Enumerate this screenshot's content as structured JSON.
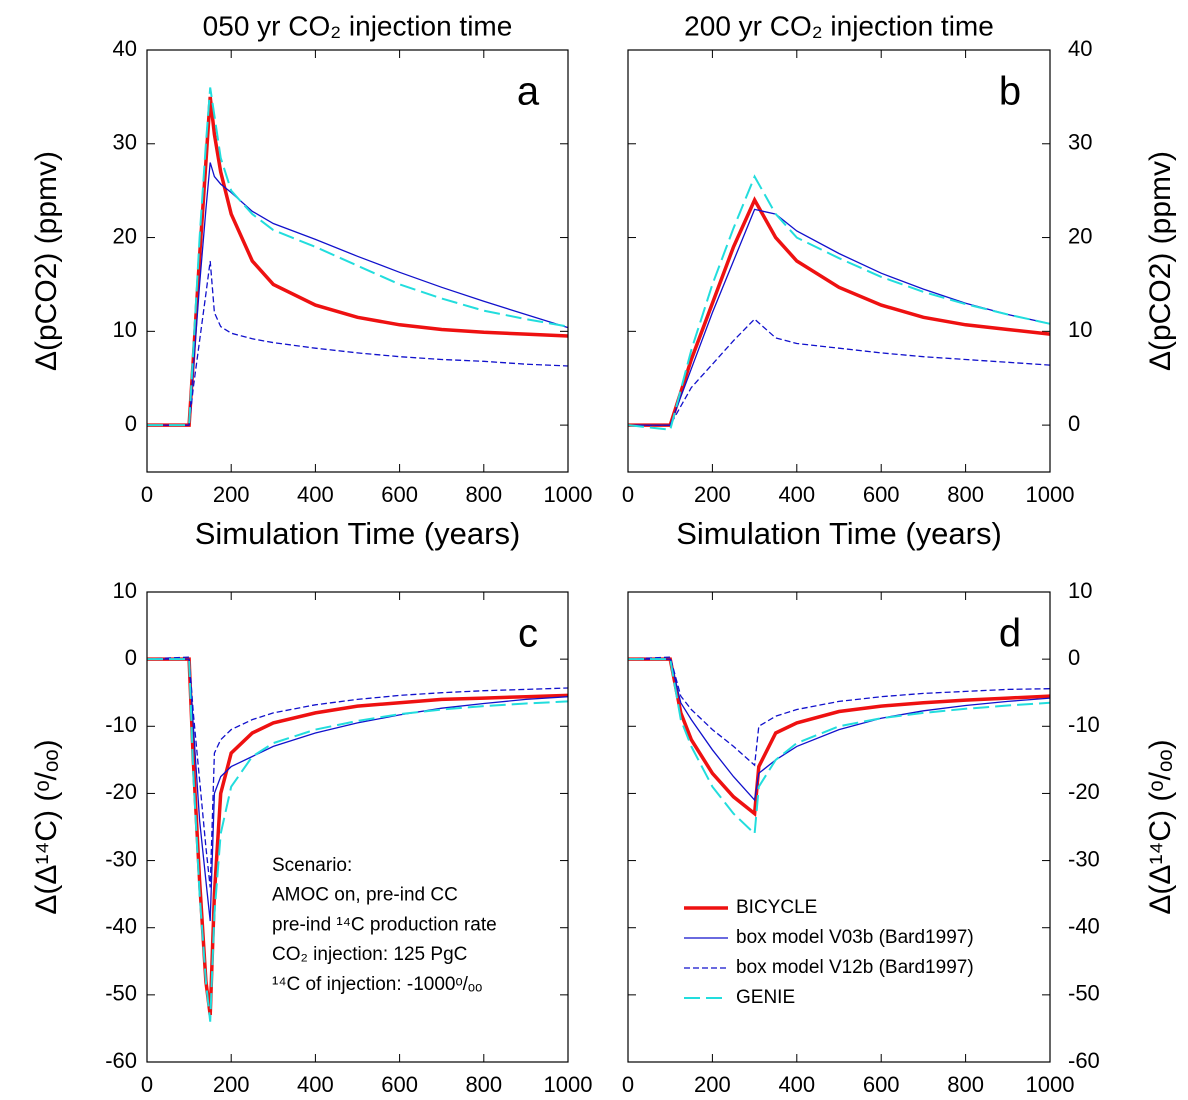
{
  "chart_data": [
    {
      "type": "line",
      "title": "050 yr CO₂ injection time",
      "panel_label": "a",
      "xlabel": "Simulation Time (years)",
      "ylabel": "Δ(pCO2) (ppmv)",
      "y_axis_side": "left",
      "xlim": [
        0,
        1000
      ],
      "xticks": [
        0,
        200,
        400,
        600,
        800,
        1000
      ],
      "ylim": [
        -5,
        40
      ],
      "yticks": [
        0,
        10,
        20,
        30,
        40
      ],
      "x": [
        0,
        100,
        110,
        125,
        140,
        150,
        160,
        175,
        200,
        250,
        300,
        400,
        500,
        600,
        700,
        800,
        900,
        1000
      ],
      "series": [
        {
          "color": "#ee1111",
          "style": "solid-thick",
          "values": [
            0,
            0,
            7,
            18,
            28,
            35,
            31,
            27,
            22.5,
            17.5,
            15,
            12.8,
            11.5,
            10.7,
            10.2,
            9.9,
            9.7,
            9.5
          ]
        },
        {
          "color": "#1111cc",
          "style": "solid",
          "values": [
            0,
            0,
            6,
            15,
            23,
            28,
            26.5,
            25.7,
            24.8,
            22.8,
            21.5,
            19.8,
            18,
            16.3,
            14.7,
            13.2,
            11.8,
            10.4
          ]
        },
        {
          "color": "#1111cc",
          "style": "dashed",
          "values": [
            0,
            0,
            4,
            9,
            14,
            17.5,
            12,
            10.5,
            9.8,
            9.2,
            8.8,
            8.2,
            7.7,
            7.3,
            7,
            6.8,
            6.5,
            6.3
          ]
        },
        {
          "color": "#22dddd",
          "style": "long-dashed",
          "values": [
            0,
            0,
            8,
            20,
            30,
            36,
            33,
            28.5,
            25,
            22.5,
            20.8,
            19,
            17,
            15,
            13.5,
            12.2,
            11.3,
            10.5
          ]
        }
      ]
    },
    {
      "type": "line",
      "title": "200 yr CO₂ injection time",
      "panel_label": "b",
      "xlabel": "Simulation Time (years)",
      "ylabel": "Δ(pCO2) (ppmv)",
      "y_axis_side": "right",
      "xlim": [
        0,
        1000
      ],
      "xticks": [
        0,
        200,
        400,
        600,
        800,
        1000
      ],
      "ylim": [
        -5,
        40
      ],
      "yticks": [
        0,
        10,
        20,
        30,
        40
      ],
      "x": [
        0,
        100,
        150,
        200,
        250,
        300,
        350,
        400,
        500,
        600,
        700,
        800,
        900,
        1000
      ],
      "series": [
        {
          "color": "#ee1111",
          "style": "solid-thick",
          "values": [
            0,
            0,
            7,
            13,
            19,
            24,
            20,
            17.5,
            14.7,
            12.8,
            11.5,
            10.7,
            10.2,
            9.7
          ]
        },
        {
          "color": "#1111cc",
          "style": "solid",
          "values": [
            0,
            0,
            6,
            12,
            17.5,
            23,
            22.5,
            20.7,
            18.3,
            16.2,
            14.5,
            13,
            11.8,
            10.8
          ]
        },
        {
          "color": "#1111cc",
          "style": "dashed",
          "values": [
            0,
            0,
            4,
            6.5,
            9,
            11.3,
            9.3,
            8.7,
            8.2,
            7.7,
            7.3,
            7,
            6.7,
            6.4
          ]
        },
        {
          "color": "#22dddd",
          "style": "long-dashed",
          "values": [
            0,
            -0.5,
            8,
            15,
            21,
            26.5,
            22.5,
            20,
            17.8,
            15.8,
            14.2,
            12.9,
            11.8,
            10.8
          ]
        }
      ]
    },
    {
      "type": "line",
      "panel_label": "c",
      "xlabel": "Simulation Time (years)",
      "ylabel": "Δ(Δ¹⁴C) (ᵒ/ₒₒ)",
      "y_axis_side": "left",
      "xlim": [
        0,
        1000
      ],
      "xticks": [
        0,
        200,
        400,
        600,
        800,
        1000
      ],
      "ylim": [
        -60,
        10
      ],
      "yticks": [
        -60,
        -50,
        -40,
        -30,
        -20,
        -10,
        0,
        10
      ],
      "annotation": [
        "Scenario:",
        "AMOC on, pre-ind CC",
        "pre-ind ¹⁴C production rate",
        "CO₂ injection: 125 PgC",
        "¹⁴C of injection: -1000ᵒ/ₒₒ"
      ],
      "x": [
        0,
        100,
        110,
        125,
        140,
        150,
        160,
        175,
        200,
        250,
        300,
        400,
        500,
        600,
        700,
        800,
        900,
        1000
      ],
      "series": [
        {
          "color": "#ee1111",
          "style": "solid-thick",
          "values": [
            0,
            0,
            -15,
            -33,
            -48,
            -53,
            -35,
            -20,
            -14,
            -11,
            -9.5,
            -8,
            -7,
            -6.5,
            -6,
            -5.8,
            -5.6,
            -5.4
          ]
        },
        {
          "color": "#1111cc",
          "style": "solid",
          "values": [
            0,
            0,
            -10,
            -24,
            -33,
            -39,
            -20,
            -17.5,
            -16,
            -14.5,
            -13,
            -11,
            -9.5,
            -8.3,
            -7.3,
            -6.6,
            -6,
            -5.6
          ]
        },
        {
          "color": "#1111cc",
          "style": "dashed",
          "values": [
            0,
            0.3,
            -8,
            -18,
            -28,
            -34,
            -14,
            -12,
            -10.5,
            -9,
            -8,
            -6.8,
            -6,
            -5.4,
            -5,
            -4.7,
            -4.5,
            -4.3
          ]
        },
        {
          "color": "#22dddd",
          "style": "long-dashed",
          "values": [
            0,
            0,
            -17,
            -35,
            -48,
            -54,
            -38,
            -26,
            -19,
            -14.5,
            -12.5,
            -10.5,
            -9.2,
            -8.2,
            -7.5,
            -7,
            -6.6,
            -6.3
          ]
        }
      ]
    },
    {
      "type": "line",
      "panel_label": "d",
      "xlabel": "Simulation Time (years)",
      "ylabel": "Δ(Δ¹⁴C) (ᵒ/ₒₒ)",
      "y_axis_side": "right",
      "legend": "lower right",
      "xlim": [
        0,
        1000
      ],
      "xticks": [
        0,
        200,
        400,
        600,
        800,
        1000
      ],
      "ylim": [
        -60,
        10
      ],
      "yticks": [
        -60,
        -50,
        -40,
        -30,
        -20,
        -10,
        0,
        10
      ],
      "x": [
        0,
        100,
        125,
        150,
        200,
        250,
        300,
        310,
        350,
        400,
        500,
        600,
        700,
        800,
        900,
        1000
      ],
      "series": [
        {
          "name": "BICYCLE",
          "color": "#ee1111",
          "style": "solid-thick",
          "values": [
            0,
            0,
            -8,
            -12,
            -17,
            -20.5,
            -23,
            -16,
            -11,
            -9.5,
            -7.8,
            -7,
            -6.5,
            -6.1,
            -5.8,
            -5.5
          ]
        },
        {
          "name": "box model V03b (Bard1997)",
          "color": "#1111cc",
          "style": "solid",
          "values": [
            0,
            0,
            -6.5,
            -9,
            -13.5,
            -17.5,
            -21,
            -17,
            -15,
            -13,
            -10.5,
            -8.8,
            -7.7,
            -6.9,
            -6.3,
            -5.8
          ]
        },
        {
          "name": "box model V12b (Bard1997)",
          "color": "#1111cc",
          "style": "dashed",
          "values": [
            0,
            0.3,
            -5.5,
            -7.5,
            -10.5,
            -13,
            -15.8,
            -10,
            -8.5,
            -7.5,
            -6.3,
            -5.6,
            -5.1,
            -4.8,
            -4.5,
            -4.4
          ]
        },
        {
          "name": "GENIE",
          "color": "#22dddd",
          "style": "long-dashed",
          "values": [
            0,
            0,
            -9,
            -13,
            -19,
            -23,
            -26,
            -19,
            -15,
            -12.5,
            -10,
            -8.8,
            -8,
            -7.4,
            -6.9,
            -6.5
          ]
        }
      ]
    }
  ]
}
